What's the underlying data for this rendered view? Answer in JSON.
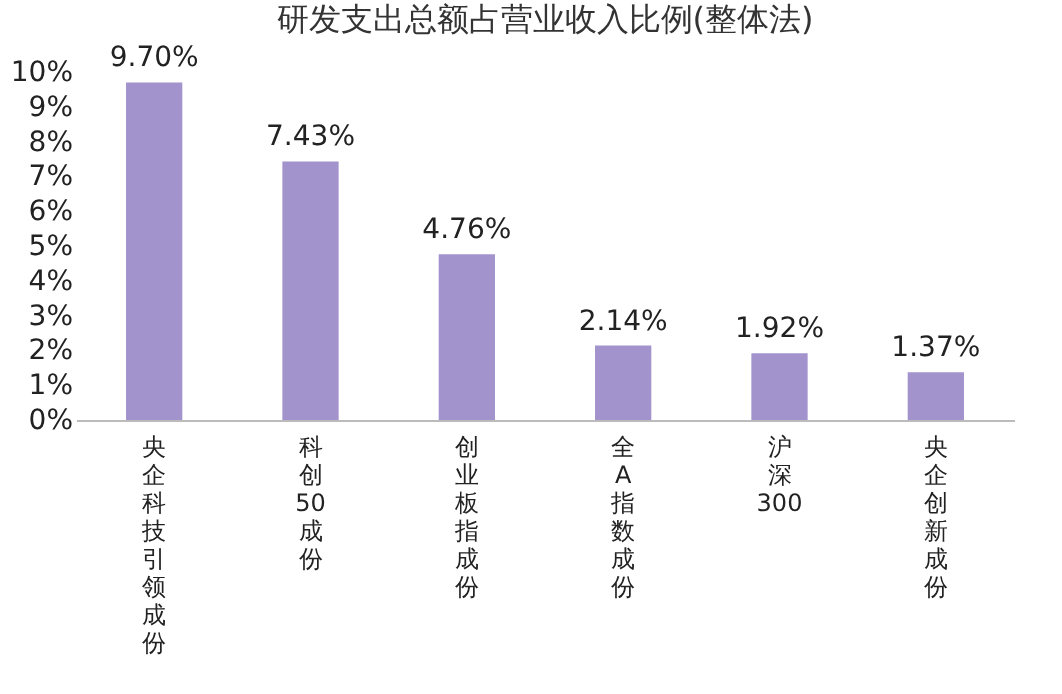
{
  "chart_data": {
    "type": "bar",
    "title": "研发支出总额占营业收入比例(整体法)",
    "categories": [
      "央企科技引领成份",
      "科创50成份",
      "创业板指成份",
      "全A指数成份",
      "沪深300",
      "央企创新成份"
    ],
    "values": [
      9.7,
      7.43,
      4.76,
      2.14,
      1.92,
      1.37
    ],
    "value_labels": [
      "9.70%",
      "7.43%",
      "4.76%",
      "2.14%",
      "1.92%",
      "1.37%"
    ],
    "color": "#a293cc",
    "ylim": [
      0,
      10
    ],
    "legend": false,
    "yticks": [
      {
        "value": 0,
        "label": "0%"
      },
      {
        "value": 1,
        "label": "1%"
      },
      {
        "value": 2,
        "label": "2%"
      },
      {
        "value": 3,
        "label": "3%"
      },
      {
        "value": 4,
        "label": "4%"
      },
      {
        "value": 5,
        "label": "5%"
      },
      {
        "value": 6,
        "label": "6%"
      },
      {
        "value": 7,
        "label": "7%"
      },
      {
        "value": 8,
        "label": "8%"
      },
      {
        "value": 9,
        "label": "9%"
      },
      {
        "value": 10,
        "label": "10%"
      }
    ],
    "grid": false
  }
}
